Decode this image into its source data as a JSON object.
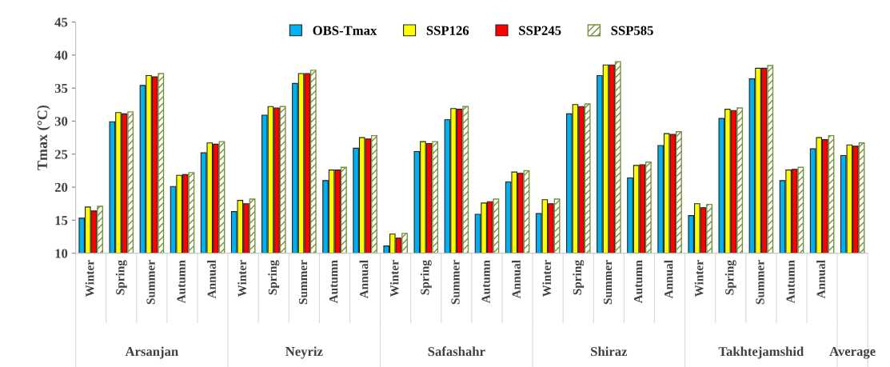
{
  "chart_data": {
    "type": "bar",
    "ylabel": "Tmax (°C)",
    "categories": [
      "Winter",
      "Spring",
      "Summer",
      "Autumn",
      "Annual",
      "Winter",
      "Spring",
      "Summer",
      "Autumn",
      "Annual",
      "Winter",
      "Spring",
      "Summer",
      "Autumn",
      "Annual",
      "Winter",
      "Spring",
      "Summer",
      "Autumn",
      "Annual",
      "Winter",
      "Spring",
      "Summer",
      "Autumn",
      "Annual",
      null
    ],
    "annotations": [
      "Arsanjan",
      "Neyriz",
      "Safashahr",
      "Shiraz",
      "Takhtejamshid",
      "Average"
    ],
    "series": [
      {
        "name": "OBS-Tmax",
        "color": "#00b0f0",
        "values": [
          15.3,
          29.9,
          35.4,
          20.1,
          25.2,
          16.3,
          30.9,
          35.7,
          21.0,
          25.9,
          11.1,
          25.4,
          30.2,
          15.9,
          20.8,
          16.0,
          31.1,
          36.9,
          21.4,
          26.3,
          15.7,
          30.4,
          36.4,
          21.0,
          25.8,
          24.8
        ]
      },
      {
        "name": "SSP126",
        "color": "#ffff00",
        "values": [
          17.0,
          31.3,
          36.9,
          21.8,
          26.7,
          18.0,
          32.2,
          37.2,
          22.6,
          27.5,
          12.9,
          26.9,
          31.9,
          17.6,
          22.3,
          18.1,
          32.5,
          38.5,
          23.3,
          28.1,
          17.5,
          31.8,
          38.0,
          22.6,
          27.5,
          26.4
        ]
      },
      {
        "name": "SSP245",
        "color": "#ff0000",
        "values": [
          16.4,
          31.1,
          36.7,
          21.9,
          26.5,
          17.5,
          32.0,
          37.2,
          22.6,
          27.3,
          12.3,
          26.6,
          31.8,
          17.8,
          22.1,
          17.5,
          32.2,
          38.5,
          23.4,
          28.0,
          16.9,
          31.6,
          38.0,
          22.7,
          27.2,
          26.2
        ]
      },
      {
        "name": "SSP585",
        "color": "#76923c",
        "values": [
          17.1,
          31.4,
          37.2,
          22.2,
          26.9,
          18.2,
          32.2,
          37.7,
          23.0,
          27.8,
          13.0,
          26.9,
          32.2,
          18.2,
          22.5,
          18.2,
          32.6,
          39.0,
          23.8,
          28.4,
          17.4,
          32.0,
          38.4,
          23.0,
          27.8,
          26.7
        ]
      }
    ],
    "ylim": [
      10,
      45
    ],
    "yticks": [
      10,
      15,
      20,
      25,
      30,
      35,
      40,
      45
    ],
    "grid": false,
    "legend": "top"
  }
}
